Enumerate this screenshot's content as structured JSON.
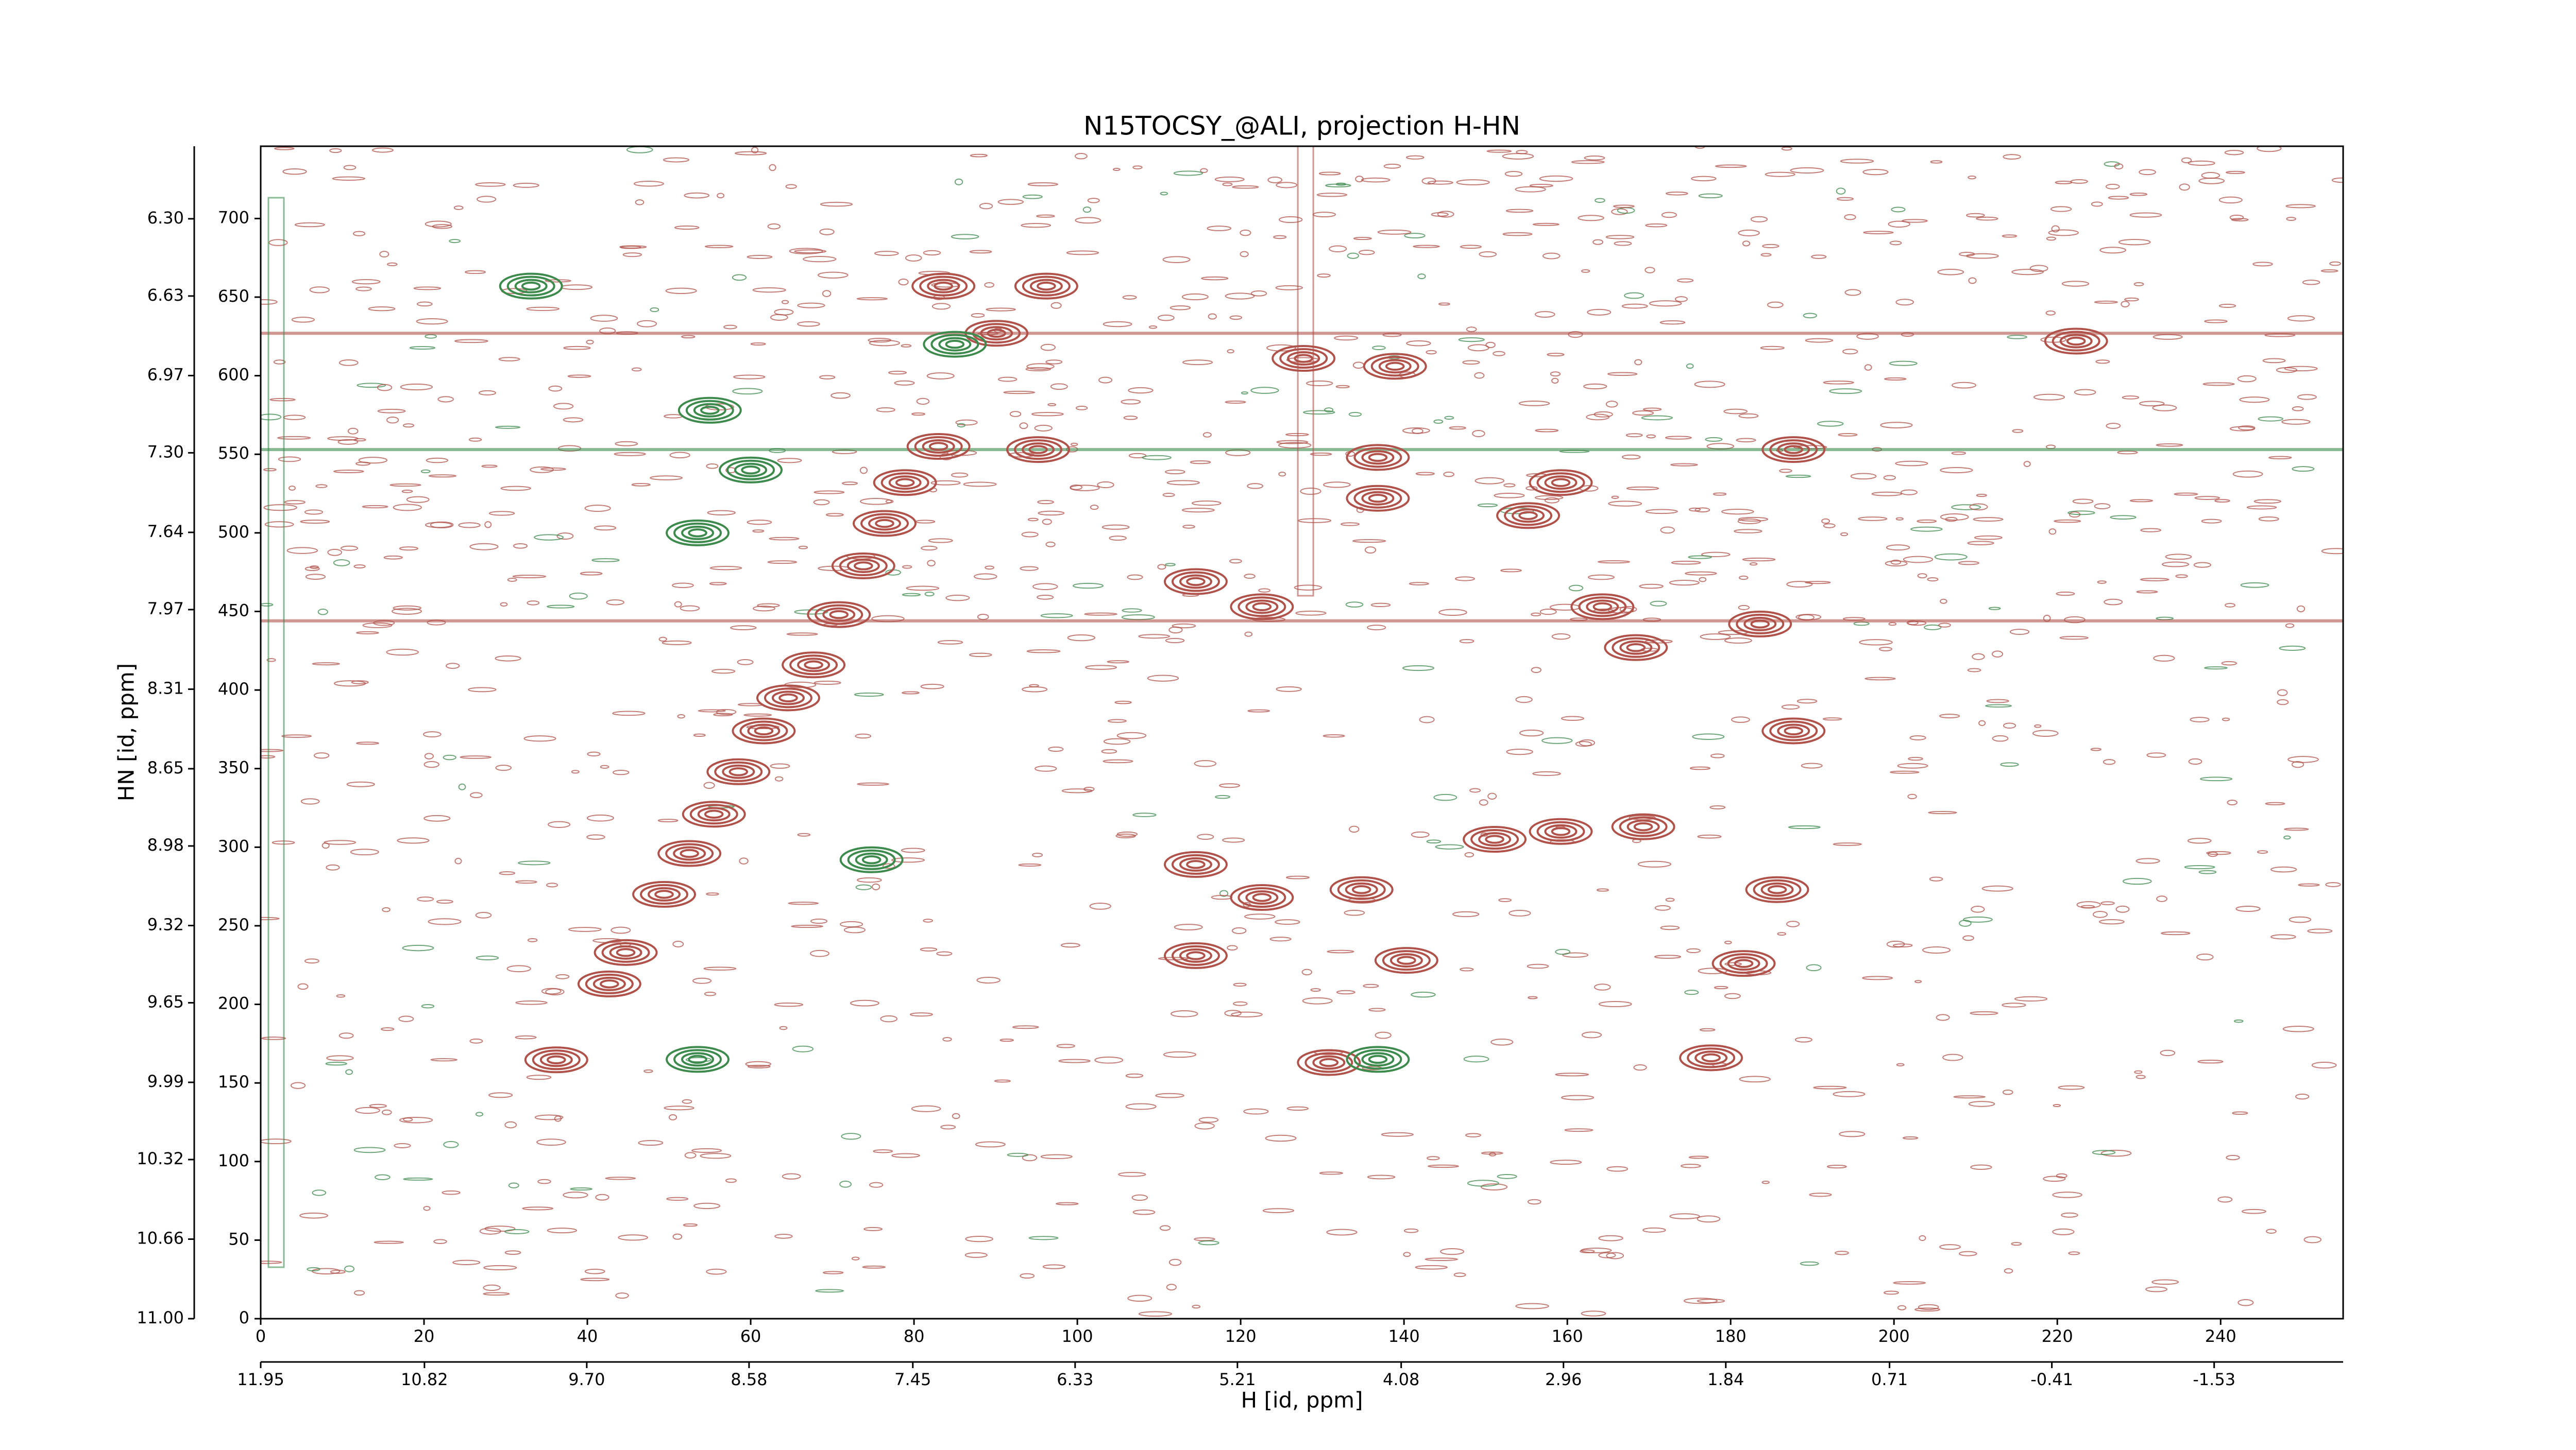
{
  "chart_data": {
    "type": "scatter",
    "title": "N15TOCSY_@ALI, projection H-HN",
    "xlabel": "H [id, ppm]",
    "ylabel": "HN [id, ppm]",
    "xlim": [
      0,
      255
    ],
    "ylim": [
      0,
      746
    ],
    "xticks": [
      0,
      20,
      40,
      60,
      80,
      100,
      120,
      140,
      160,
      180,
      200,
      220,
      240
    ],
    "yticks": [
      0,
      50,
      100,
      150,
      200,
      250,
      300,
      350,
      400,
      450,
      500,
      550,
      600,
      650,
      700
    ],
    "x2lim": [
      11.95,
      -2.42
    ],
    "x2ticks": [
      11.95,
      10.82,
      {
        "value": 9.7,
        "label": "9.70"
      },
      8.58,
      7.45,
      6.33,
      5.21,
      4.08,
      2.96,
      1.84,
      0.71,
      -0.41,
      -1.53
    ],
    "y2lim": [
      11.0,
      5.99
    ],
    "y2ticks": [
      {
        "value": 11.0,
        "label": "11.00"
      },
      10.66,
      10.32,
      9.99,
      9.65,
      9.32,
      8.98,
      8.65,
      8.31,
      7.97,
      7.64,
      {
        "value": 7.3,
        "label": "7.30"
      },
      6.97,
      6.63,
      {
        "value": 6.3,
        "label": "6.30"
      }
    ],
    "series": [
      {
        "color": "#b0524a",
        "x": [
          36.2,
          42.7,
          44.7,
          49.4,
          52.5,
          55.5,
          58.5,
          61.6,
          64.6,
          67.7,
          70.8,
          73.8,
          76.4,
          78.9,
          83.0,
          83.6,
          90.1,
          96.2,
          95.2,
          114.5,
          122.6,
          130.8,
          114.5,
          122.6,
          134.8,
          140.3,
          114.5,
          127.7,
          138.9,
          136.8,
          136.8,
          151.1,
          159.2,
          169.3,
          177.6,
          181.6,
          164.3,
          168.4,
          187.7,
          222.3,
          183.6,
          187.7,
          185.7,
          159.2,
          155.2
        ],
        "values": [
          164.7,
          213,
          233,
          270,
          296,
          321,
          348,
          374,
          395,
          416,
          448,
          479,
          506,
          532,
          555,
          657,
          627,
          657,
          553,
          469,
          453,
          163,
          289,
          268,
          273,
          228,
          231,
          611,
          606,
          548,
          522,
          305,
          310,
          313,
          166,
          226,
          453,
          427,
          553,
          622,
          442,
          374,
          273,
          532,
          511
        ]
      },
      {
        "color": "#3c8a4c",
        "x": [
          33.1,
          53.5,
          74.8,
          53.5,
          136.8,
          55.0,
          60.0,
          85.0
        ],
        "values": [
          657,
          500,
          292,
          165,
          165,
          578,
          540,
          620
        ]
      }
    ]
  }
}
